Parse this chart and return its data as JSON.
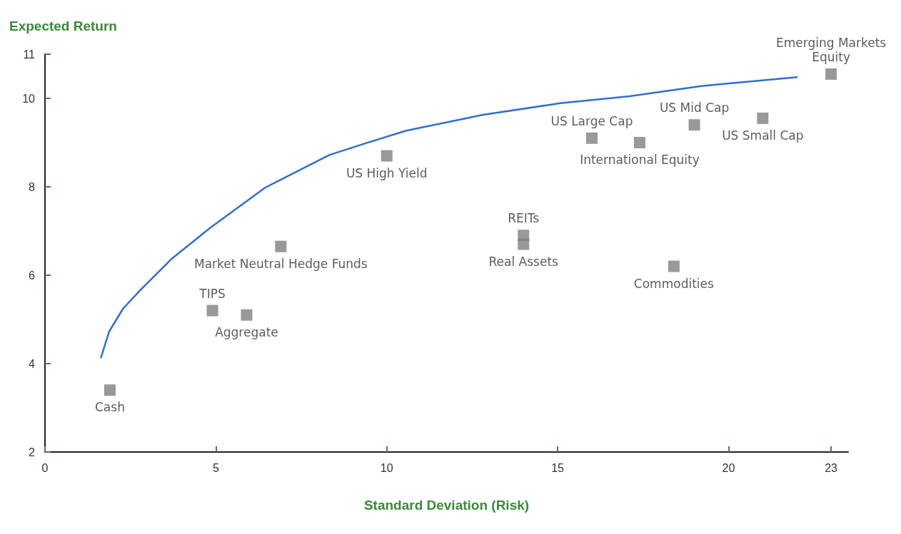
{
  "chart_data": {
    "type": "scatter",
    "xlabel": "Standard Deviation (Risk)",
    "ylabel": "Expected Return",
    "xlim": [
      0,
      23.5
    ],
    "xticks": [
      0,
      5,
      10,
      15,
      20,
      23
    ],
    "ylim": [
      2,
      11
    ],
    "yticks": [
      2,
      4,
      6,
      8,
      10,
      11
    ],
    "grid": false,
    "series": [
      {
        "type": "line",
        "color": "#2f6fd0",
        "marker": "none",
        "x": [
          1.64,
          1.88,
          2.29,
          2.8,
          3.72,
          4.85,
          6.44,
          8.32,
          9.24,
          10.57,
          12.82,
          15.07,
          17.1,
          19.2,
          22.0
        ],
        "values": [
          4.14,
          4.73,
          5.25,
          5.67,
          6.38,
          7.08,
          7.98,
          8.72,
          8.95,
          9.27,
          9.63,
          9.89,
          10.05,
          10.28,
          10.48
        ]
      },
      {
        "color": "#808080",
        "marker": "square",
        "x": [
          1.9,
          4.9,
          5.9,
          6.9,
          10.0,
          14.0,
          14.0,
          18.4,
          16.0,
          17.4,
          19.0,
          21.0,
          23.0
        ],
        "values": [
          3.4,
          5.2,
          5.1,
          6.65,
          8.7,
          6.9,
          6.7,
          6.2,
          9.1,
          9.0,
          9.4,
          9.55,
          10.55
        ]
      }
    ],
    "annotations": [
      {
        "text": "Cash",
        "x": 1.9,
        "y": 3.4
      },
      {
        "text": "TIPS",
        "x": 4.9,
        "y": 5.2
      },
      {
        "text": "Aggregate",
        "x": 5.9,
        "y": 5.1
      },
      {
        "text": "Market Neutral Hedge Funds",
        "x": 6.9,
        "y": 6.65
      },
      {
        "text": "US High Yield",
        "x": 10.0,
        "y": 8.7
      },
      {
        "text": "REITs",
        "x": 14.0,
        "y": 6.9
      },
      {
        "text": "Real Assets",
        "x": 14.0,
        "y": 6.7
      },
      {
        "text": "Commodities",
        "x": 18.4,
        "y": 6.2
      },
      {
        "text": "US Large Cap",
        "x": 16.0,
        "y": 9.1
      },
      {
        "text": "International Equity",
        "x": 17.4,
        "y": 9.0
      },
      {
        "text": "US Mid Cap",
        "x": 19.0,
        "y": 9.4
      },
      {
        "text": "US Small Cap",
        "x": 21.0,
        "y": 9.55
      },
      {
        "text": "Emerging Markets\nEquity",
        "x": 23.0,
        "y": 10.55
      }
    ]
  }
}
